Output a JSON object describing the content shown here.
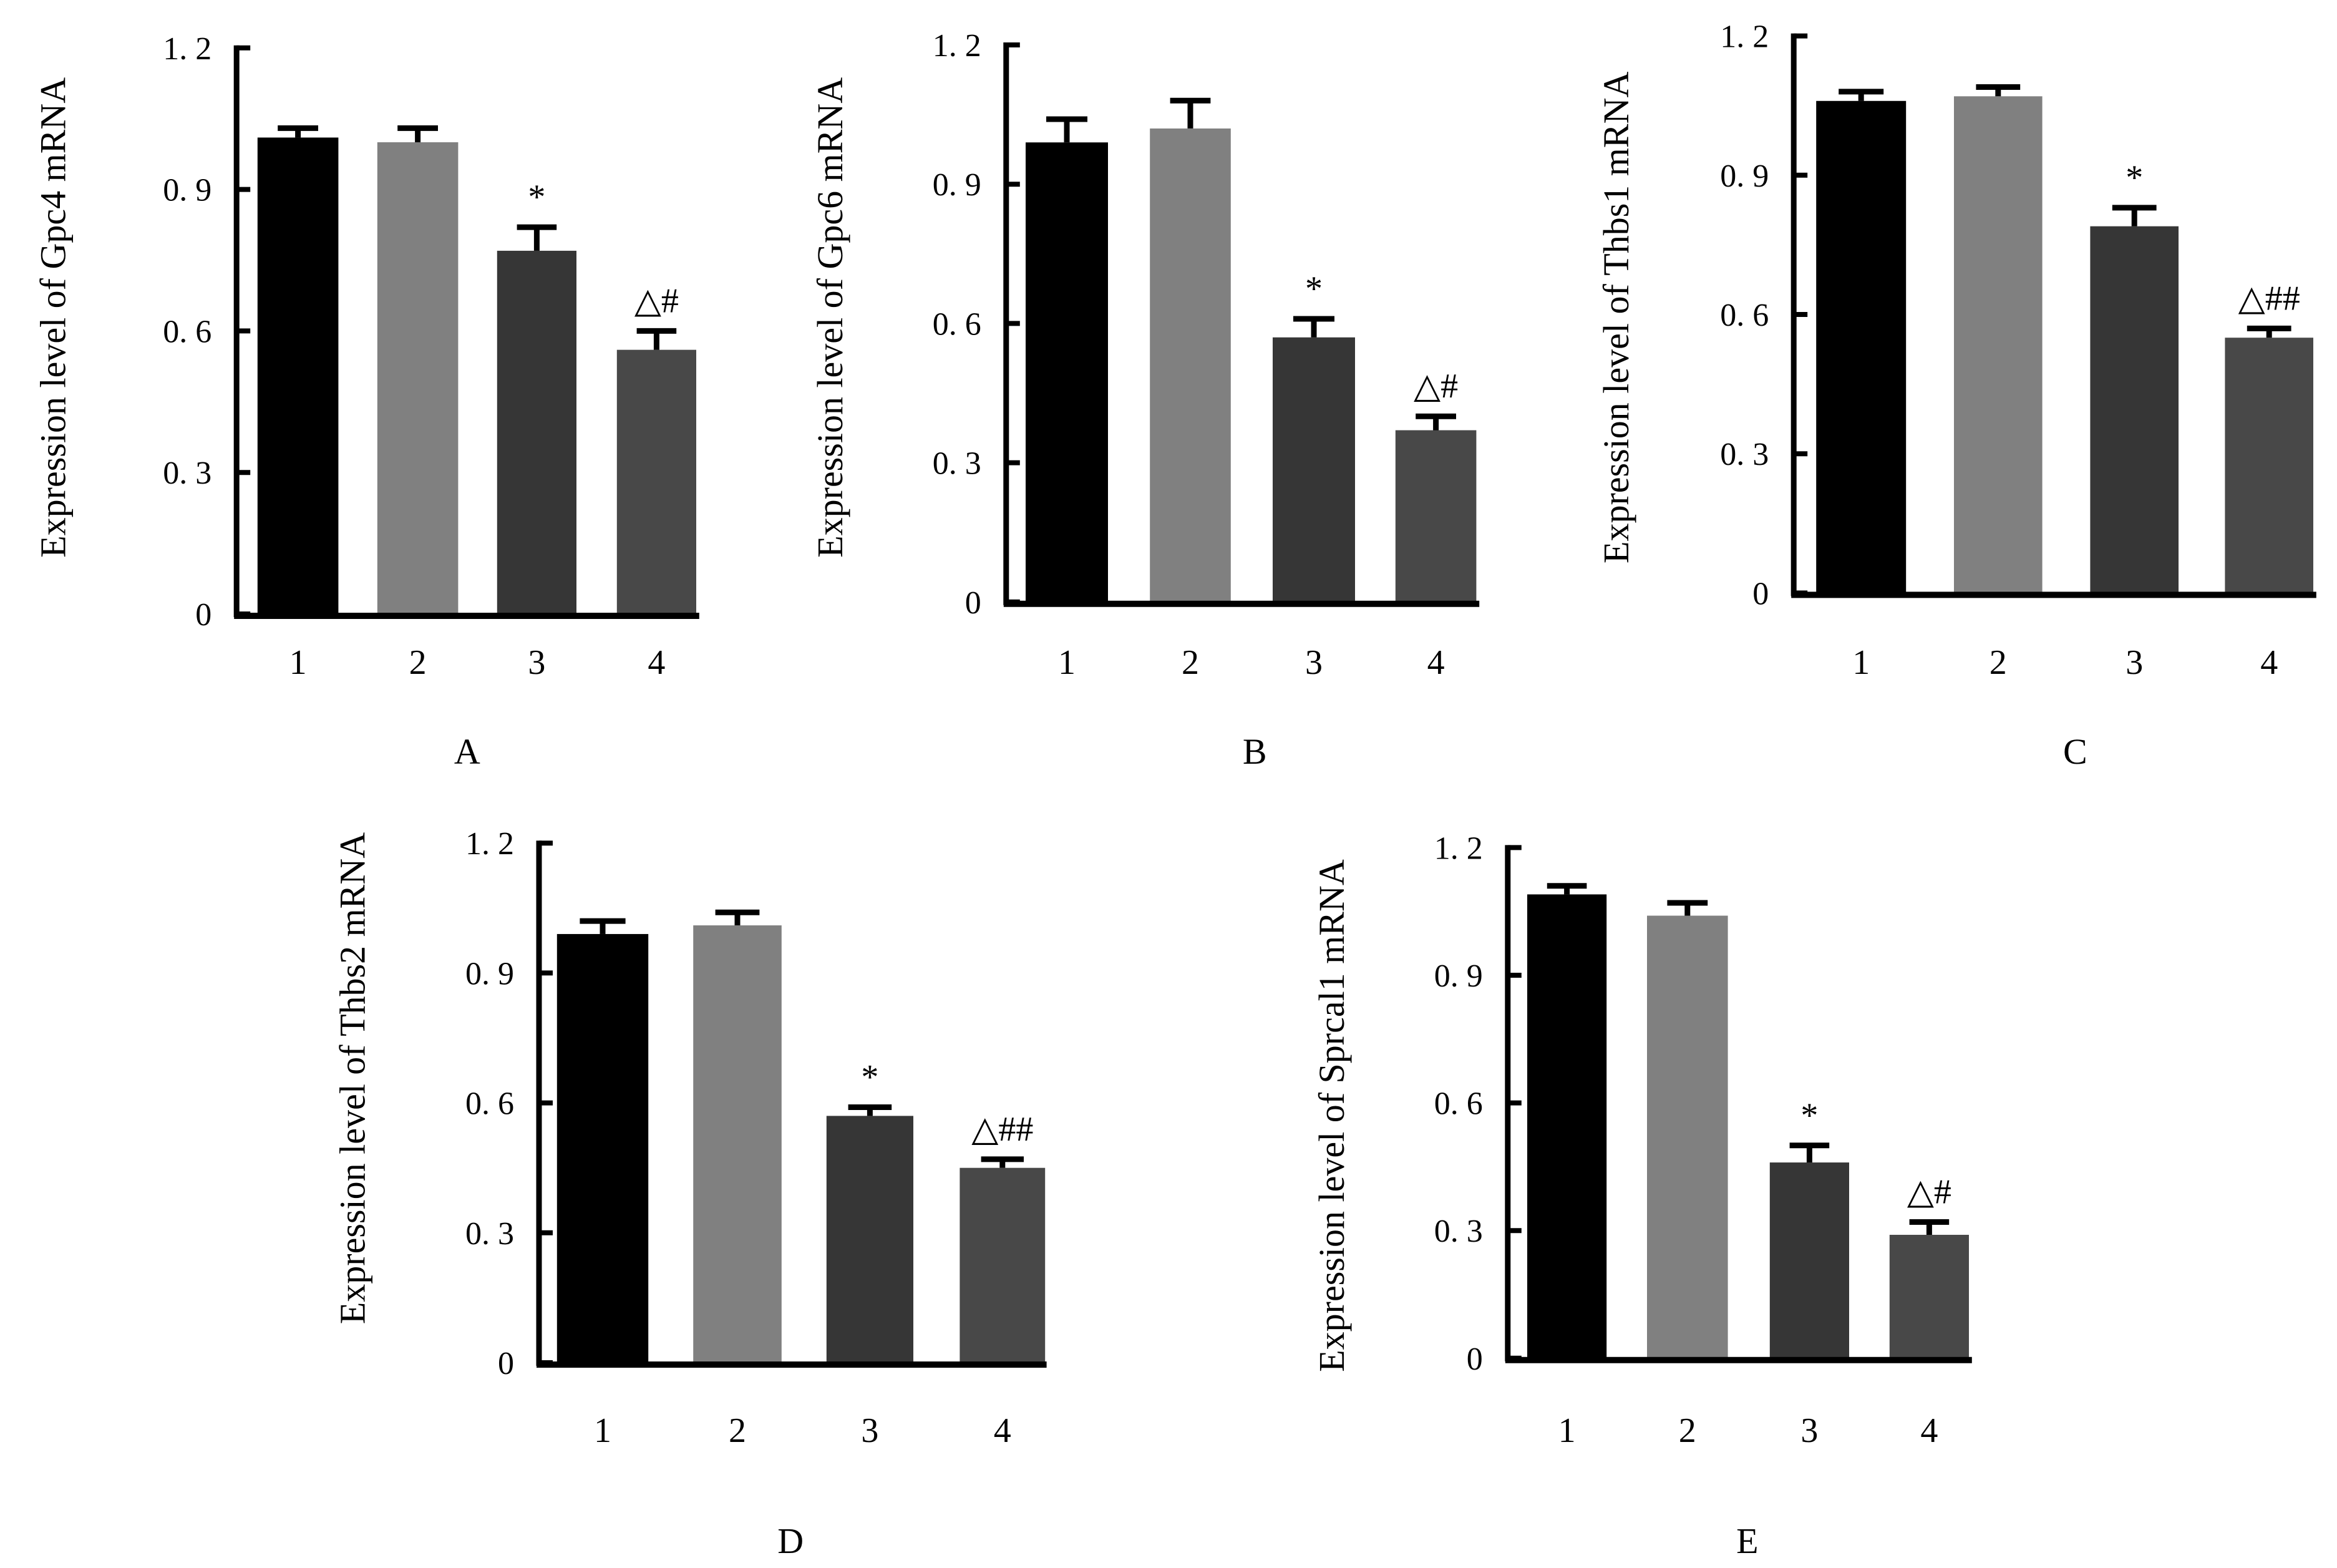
{
  "chart_data": [
    {
      "type": "bar",
      "panel": "A",
      "ylabel": "Expression level of Gpc4 mRNA",
      "categories": [
        "1",
        "2",
        "3",
        "4"
      ],
      "values": [
        1.01,
        1.0,
        0.77,
        0.56
      ],
      "error_upper": [
        1.03,
        1.03,
        0.82,
        0.6
      ],
      "annotations": [
        "",
        "",
        "*",
        "△#"
      ],
      "yticks": [
        "1. 2",
        "0. 9",
        "0. 6",
        "0. 3",
        "0"
      ],
      "ytick_values": [
        1.2,
        0.9,
        0.6,
        0.3,
        0
      ],
      "ylim": [
        0,
        1.2
      ],
      "grid": false
    },
    {
      "type": "bar",
      "panel": "B",
      "ylabel": "Expression level of Gpc6 mRNA",
      "categories": [
        "1",
        "2",
        "3",
        "4"
      ],
      "values": [
        0.99,
        1.02,
        0.57,
        0.37
      ],
      "error_upper": [
        1.04,
        1.08,
        0.61,
        0.4
      ],
      "annotations": [
        "",
        "",
        "*",
        "△#"
      ],
      "yticks": [
        "1. 2",
        "0. 9",
        "0. 6",
        "0. 3",
        "0"
      ],
      "ytick_values": [
        1.2,
        0.9,
        0.6,
        0.3,
        0
      ],
      "ylim": [
        0,
        1.2
      ],
      "grid": false
    },
    {
      "type": "bar",
      "panel": "C",
      "ylabel": "Expression level of Thbs1 mRNA",
      "categories": [
        "1",
        "2",
        "3",
        "4"
      ],
      "values": [
        1.06,
        1.07,
        0.79,
        0.55
      ],
      "error_upper": [
        1.08,
        1.09,
        0.83,
        0.57
      ],
      "annotations": [
        "",
        "",
        "*",
        "△##"
      ],
      "yticks": [
        "1. 2",
        "0. 9",
        "0. 6",
        "0. 3",
        "0"
      ],
      "ytick_values": [
        1.2,
        0.9,
        0.6,
        0.3,
        0
      ],
      "ylim": [
        0,
        1.2
      ],
      "grid": false
    },
    {
      "type": "bar",
      "panel": "D",
      "ylabel": "Expression level of Thbs2 mRNA",
      "categories": [
        "1",
        "2",
        "3",
        "4"
      ],
      "values": [
        0.99,
        1.01,
        0.57,
        0.45
      ],
      "error_upper": [
        1.02,
        1.04,
        0.59,
        0.47
      ],
      "annotations": [
        "",
        "",
        "*",
        "△##"
      ],
      "yticks": [
        "1. 2",
        "0. 9",
        "0. 6",
        "0. 3",
        "0"
      ],
      "ytick_values": [
        1.2,
        0.9,
        0.6,
        0.3,
        0
      ],
      "ylim": [
        0,
        1.2
      ],
      "grid": false
    },
    {
      "type": "bar",
      "panel": "E",
      "ylabel": "Expression level of Sprcal1 mRNA",
      "categories": [
        "1",
        "2",
        "3",
        "4"
      ],
      "values": [
        1.09,
        1.04,
        0.46,
        0.29
      ],
      "error_upper": [
        1.11,
        1.07,
        0.5,
        0.32
      ],
      "annotations": [
        "",
        "",
        "*",
        "△#"
      ],
      "yticks": [
        "1. 2",
        "0. 9",
        "0. 6",
        "0. 3",
        "0"
      ],
      "ytick_values": [
        1.2,
        0.9,
        0.6,
        0.3,
        0
      ],
      "ylim": [
        0,
        1.2
      ],
      "grid": false
    }
  ],
  "bar_colors": [
    "#000000",
    "#808080",
    "#363636",
    "#484848"
  ],
  "axis_color": "#000000"
}
